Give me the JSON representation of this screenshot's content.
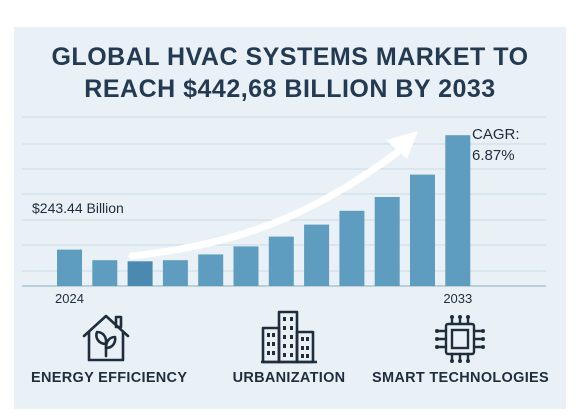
{
  "title_lines": [
    "GLOBAL HVAC SYSTEMS MARKET TO",
    "REACH $442,68 BILLION BY 2033"
  ],
  "start_annotation": "$243.44 Billion",
  "cagr_label": "CAGR:",
  "cagr_value": "6.87%",
  "features": [
    {
      "label": "ENERGY EFFICIENCY",
      "icon": "house-leaf-icon"
    },
    {
      "label": "URBANIZATION",
      "icon": "buildings-icon"
    },
    {
      "label": "SMART TECHNOLOGIES",
      "icon": "chip-icon"
    }
  ],
  "colors": {
    "background": "#e9f1f6",
    "bar": "#5e9dbf",
    "bar_highlight": "#4a8ab0",
    "title": "#233a52",
    "icon": "#1f2d3d"
  },
  "chart_data": {
    "type": "bar",
    "title": "GLOBAL HVAC SYSTEMS MARKET TO REACH $442,68 BILLION BY 2033",
    "categories": [
      "2024",
      "",
      "",
      "",
      "",
      "",
      "",
      "",
      "",
      "",
      "",
      "2033"
    ],
    "tick_labels": [
      "2024",
      "2033"
    ],
    "values": [
      243.44,
      225,
      223,
      225,
      235,
      249,
      266,
      287,
      311,
      335,
      374,
      442.68
    ],
    "highlight_index": 2,
    "ylim": [
      180,
      450
    ],
    "grid": true,
    "trend_arrow": true,
    "annotations": [
      "$243.44 Billion",
      "CAGR: 6.87%"
    ]
  }
}
